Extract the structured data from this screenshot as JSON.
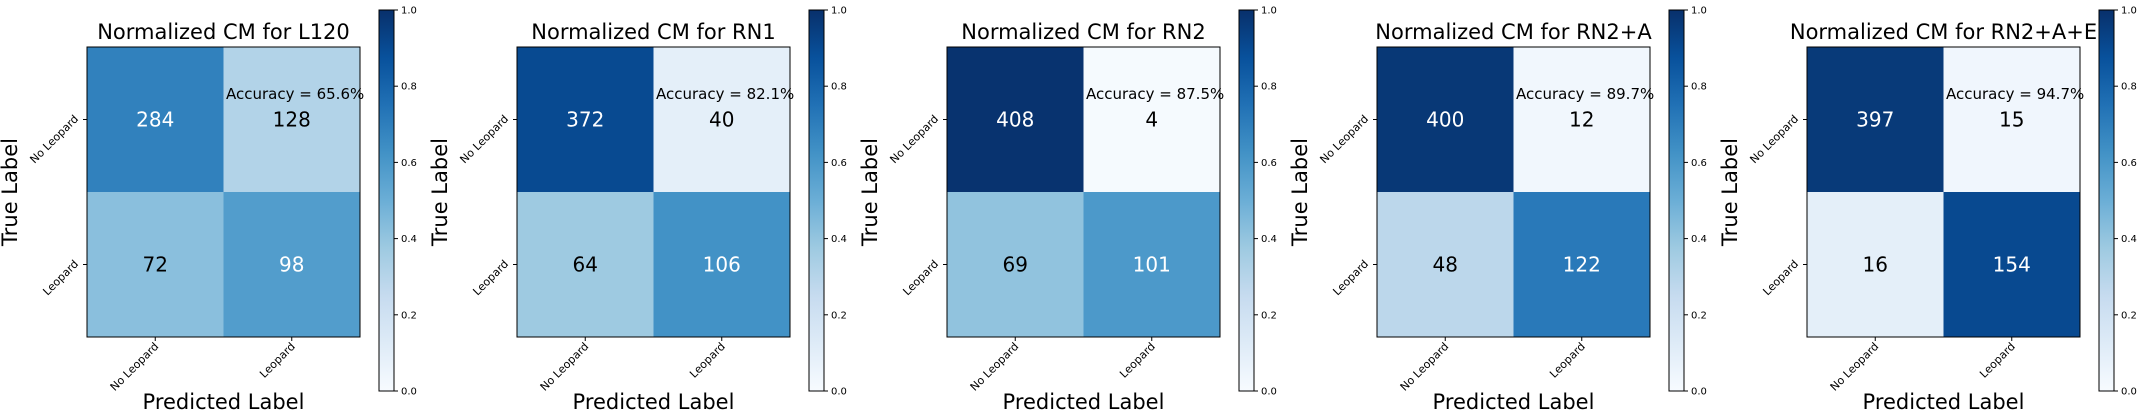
{
  "chart_data": [
    {
      "type": "heatmap",
      "title": "Normalized CM for L120",
      "xlabel": "Predicted Label",
      "ylabel": "True Label",
      "x_categories": [
        "No Leopard",
        "Leopard"
      ],
      "y_categories": [
        "No Leopard",
        "Leopard"
      ],
      "values": [
        [
          284,
          128
        ],
        [
          72,
          98
        ]
      ],
      "normalized": [
        [
          0.689,
          0.311
        ],
        [
          0.424,
          0.576
        ]
      ],
      "annotation": "Accuracy = 65.6%",
      "colorbar": {
        "min": 0.0,
        "max": 1.0,
        "ticks": [
          "0.0",
          "0.2",
          "0.4",
          "0.6",
          "0.8",
          "1.0"
        ]
      }
    },
    {
      "type": "heatmap",
      "title": "Normalized CM for RN1",
      "xlabel": "Predicted Label",
      "ylabel": "True Label",
      "x_categories": [
        "No Leopard",
        "Leopard"
      ],
      "y_categories": [
        "No Leopard",
        "Leopard"
      ],
      "values": [
        [
          372,
          40
        ],
        [
          64,
          106
        ]
      ],
      "normalized": [
        [
          0.903,
          0.097
        ],
        [
          0.376,
          0.624
        ]
      ],
      "annotation": "Accuracy = 82.1%",
      "colorbar": {
        "min": 0.0,
        "max": 1.0,
        "ticks": [
          "0.0",
          "0.2",
          "0.4",
          "0.6",
          "0.8",
          "1.0"
        ]
      }
    },
    {
      "type": "heatmap",
      "title": "Normalized CM for RN2",
      "xlabel": "Predicted Label",
      "ylabel": "True Label",
      "x_categories": [
        "No Leopard",
        "Leopard"
      ],
      "y_categories": [
        "No Leopard",
        "Leopard"
      ],
      "values": [
        [
          408,
          4
        ],
        [
          69,
          101
        ]
      ],
      "normalized": [
        [
          0.99,
          0.01
        ],
        [
          0.406,
          0.594
        ]
      ],
      "annotation": "Accuracy = 87.5%",
      "colorbar": {
        "min": 0.0,
        "max": 1.0,
        "ticks": [
          "0.0",
          "0.2",
          "0.4",
          "0.6",
          "0.8",
          "1.0"
        ]
      }
    },
    {
      "type": "heatmap",
      "title": "Normalized CM for RN2+A",
      "xlabel": "Predicted Label",
      "ylabel": "True Label",
      "x_categories": [
        "No Leopard",
        "Leopard"
      ],
      "y_categories": [
        "No Leopard",
        "Leopard"
      ],
      "values": [
        [
          400,
          12
        ],
        [
          48,
          122
        ]
      ],
      "normalized": [
        [
          0.971,
          0.029
        ],
        [
          0.282,
          0.718
        ]
      ],
      "annotation": "Accuracy = 89.7%",
      "colorbar": {
        "min": 0.0,
        "max": 1.0,
        "ticks": [
          "0.0",
          "0.2",
          "0.4",
          "0.6",
          "0.8",
          "1.0"
        ]
      }
    },
    {
      "type": "heatmap",
      "title": "Normalized CM for RN2+A+E",
      "xlabel": "Predicted Label",
      "ylabel": "True Label",
      "x_categories": [
        "No Leopard",
        "Leopard"
      ],
      "y_categories": [
        "No Leopard",
        "Leopard"
      ],
      "values": [
        [
          397,
          15
        ],
        [
          16,
          154
        ]
      ],
      "normalized": [
        [
          0.964,
          0.036
        ],
        [
          0.094,
          0.906
        ]
      ],
      "annotation": "Accuracy = 94.7%",
      "colorbar": {
        "min": 0.0,
        "max": 1.0,
        "ticks": [
          "0.0",
          "0.2",
          "0.4",
          "0.6",
          "0.8",
          "1.0"
        ]
      }
    }
  ]
}
